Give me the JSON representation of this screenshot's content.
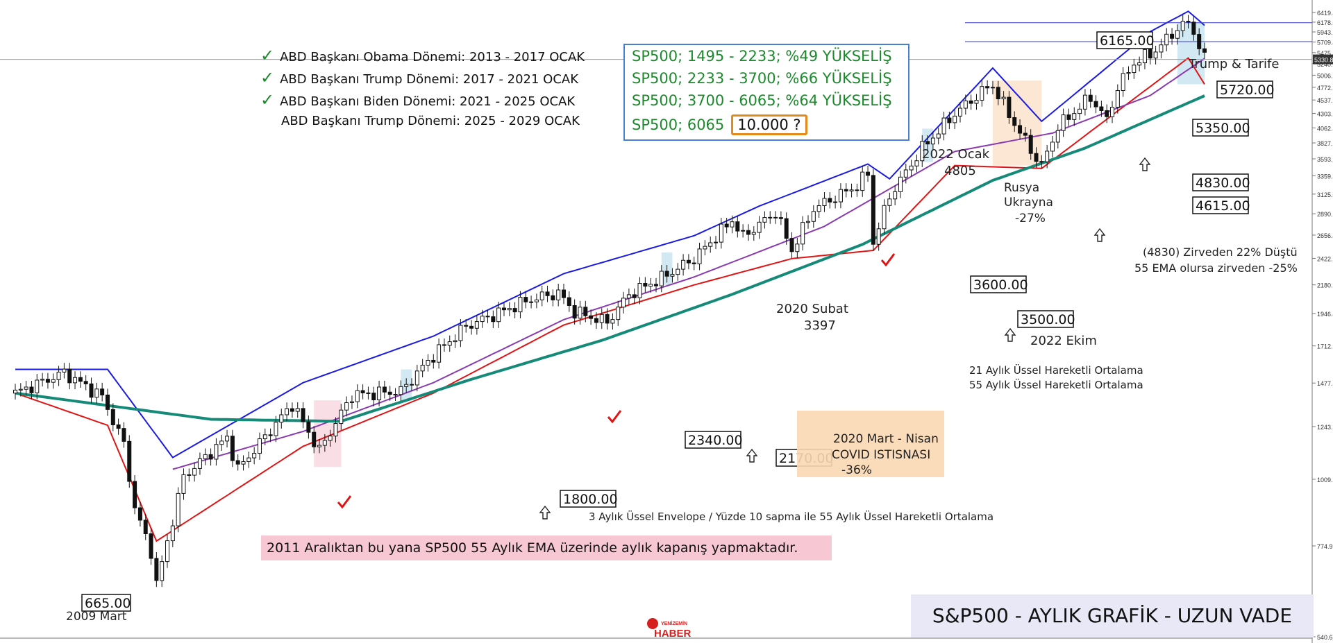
{
  "chart_data": {
    "type": "candlestick",
    "title": "S&P500 - AYLIK GRAFİK - UZUN VADE",
    "x_range": [
      "2007-01",
      "2025-04"
    ],
    "ylim": [
      540.6,
      6419.4
    ],
    "y_scale": "log",
    "y_ticks": [
      "6419.4",
      "6178.0",
      "5943.7",
      "5709.4",
      "5475.1",
      "5240.8",
      "5006.5",
      "4772.2",
      "4537.9",
      "4303.6",
      "4062.8",
      "3827.9",
      "3593.6",
      "3359.3",
      "3125.0",
      "2890.7",
      "2656.4",
      "2422.1",
      "2180.7",
      "1946.4",
      "1712.1",
      "1477.8",
      "1243.5",
      "1009.2",
      "774.9",
      "540.6"
    ],
    "last_price_tag": "5330.8",
    "price_path": [
      {
        "date": "2007-01",
        "close": 1420
      },
      {
        "date": "2007-10",
        "close": 1540
      },
      {
        "date": "2008-05",
        "close": 1400
      },
      {
        "date": "2008-09",
        "close": 1160
      },
      {
        "date": "2008-11",
        "close": 900
      },
      {
        "date": "2009-02",
        "close": 760
      },
      {
        "date": "2009-03",
        "close": 665
      },
      {
        "date": "2009-08",
        "close": 1020
      },
      {
        "date": "2010-04",
        "close": 1190
      },
      {
        "date": "2010-06",
        "close": 1050
      },
      {
        "date": "2011-04",
        "close": 1360
      },
      {
        "date": "2011-09",
        "close": 1130
      },
      {
        "date": "2012-03",
        "close": 1410
      },
      {
        "date": "2012-12",
        "close": 1430
      },
      {
        "date": "2013-06",
        "close": 1650
      },
      {
        "date": "2013-12",
        "close": 1850
      },
      {
        "date": "2014-12",
        "close": 2060
      },
      {
        "date": "2015-05",
        "close": 2110
      },
      {
        "date": "2015-08",
        "close": 1960
      },
      {
        "date": "2016-02",
        "close": 1880
      },
      {
        "date": "2016-06",
        "close": 2100
      },
      {
        "date": "2016-12",
        "close": 2240
      },
      {
        "date": "2017-06",
        "close": 2420
      },
      {
        "date": "2018-01",
        "close": 2820
      },
      {
        "date": "2018-03",
        "close": 2640
      },
      {
        "date": "2018-09",
        "close": 2910
      },
      {
        "date": "2018-12",
        "close": 2500
      },
      {
        "date": "2019-04",
        "close": 2950
      },
      {
        "date": "2019-12",
        "close": 3230
      },
      {
        "date": "2020-02",
        "close": 3397
      },
      {
        "date": "2020-03",
        "close": 2580
      },
      {
        "date": "2020-06",
        "close": 3100
      },
      {
        "date": "2020-12",
        "close": 3750
      },
      {
        "date": "2021-06",
        "close": 4300
      },
      {
        "date": "2021-12",
        "close": 4766
      },
      {
        "date": "2022-01",
        "close": 4805
      },
      {
        "date": "2022-05",
        "close": 4130
      },
      {
        "date": "2022-09",
        "close": 3600
      },
      {
        "date": "2022-10",
        "close": 3500
      },
      {
        "date": "2023-01",
        "close": 4080
      },
      {
        "date": "2023-07",
        "close": 4590
      },
      {
        "date": "2023-10",
        "close": 4190
      },
      {
        "date": "2023-12",
        "close": 4770
      },
      {
        "date": "2024-03",
        "close": 5250
      },
      {
        "date": "2024-07",
        "close": 5520
      },
      {
        "date": "2024-11",
        "close": 6030
      },
      {
        "date": "2025-01",
        "close": 6165
      },
      {
        "date": "2025-02",
        "close": 5950
      },
      {
        "date": "2025-03",
        "close": 5620
      },
      {
        "date": "2025-04",
        "close": 5330
      }
    ],
    "series": [
      {
        "name": "21  Aylık Üssel Hareketli Ortalama",
        "color": "#8a3ab0",
        "values": [
          {
            "date": "2009-06",
            "value": 1050
          },
          {
            "date": "2011-06",
            "value": 1220
          },
          {
            "date": "2013-06",
            "value": 1480
          },
          {
            "date": "2015-06",
            "value": 1900
          },
          {
            "date": "2017-06",
            "value": 2250
          },
          {
            "date": "2019-06",
            "value": 2750
          },
          {
            "date": "2021-06",
            "value": 3700
          },
          {
            "date": "2022-12",
            "value": 3980
          },
          {
            "date": "2024-06",
            "value": 4620
          },
          {
            "date": "2025-04",
            "value": 5350
          }
        ]
      },
      {
        "name": "55 Aylık Üssel Hareketli Ortalama",
        "color": "#168a78",
        "values": [
          {
            "date": "2007-01",
            "value": 1420
          },
          {
            "date": "2010-01",
            "value": 1280
          },
          {
            "date": "2012-01",
            "value": 1270
          },
          {
            "date": "2014-01",
            "value": 1500
          },
          {
            "date": "2016-01",
            "value": 1750
          },
          {
            "date": "2018-01",
            "value": 2100
          },
          {
            "date": "2020-01",
            "value": 2560
          },
          {
            "date": "2022-01",
            "value": 3300
          },
          {
            "date": "2023-06",
            "value": 3750
          },
          {
            "date": "2025-04",
            "value": 4615
          }
        ]
      }
    ],
    "envelope_upper": [
      {
        "date": "2007-01",
        "value": 1560
      },
      {
        "date": "2008-06",
        "value": 1560
      },
      {
        "date": "2009-06",
        "value": 1100
      },
      {
        "date": "2011-06",
        "value": 1480
      },
      {
        "date": "2013-06",
        "value": 1780
      },
      {
        "date": "2015-06",
        "value": 2280
      },
      {
        "date": "2017-06",
        "value": 2650
      },
      {
        "date": "2018-06",
        "value": 2980
      },
      {
        "date": "2020-02",
        "value": 3520
      },
      {
        "date": "2020-06",
        "value": 3320
      },
      {
        "date": "2022-01",
        "value": 5150
      },
      {
        "date": "2022-10",
        "value": 4170
      },
      {
        "date": "2024-06",
        "value": 5950
      },
      {
        "date": "2025-01",
        "value": 6450
      },
      {
        "date": "2025-04",
        "value": 6100
      }
    ],
    "envelope_lower": [
      {
        "date": "2007-01",
        "value": 1420
      },
      {
        "date": "2008-06",
        "value": 1250
      },
      {
        "date": "2009-03",
        "value": 790
      },
      {
        "date": "2011-06",
        "value": 1150
      },
      {
        "date": "2013-06",
        "value": 1420
      },
      {
        "date": "2015-06",
        "value": 1860
      },
      {
        "date": "2017-06",
        "value": 2180
      },
      {
        "date": "2018-12",
        "value": 2420
      },
      {
        "date": "2020-03",
        "value": 2500
      },
      {
        "date": "2021-06",
        "value": 3500
      },
      {
        "date": "2022-10",
        "value": 3460
      },
      {
        "date": "2024-03",
        "value": 4560
      },
      {
        "date": "2025-01",
        "value": 5360
      },
      {
        "date": "2025-04",
        "value": 4830
      }
    ],
    "price_boxes": [
      "665.00",
      "1800.00",
      "2340.00",
      "2170.00",
      "3600.00",
      "3500.00",
      "6165.00",
      "5720.00",
      "5350.00",
      "4830.00",
      "4615.00"
    ],
    "annotations": {
      "mar2009": "2009 Mart",
      "feb2020": "2020 Subat",
      "feb2020_val": "3397",
      "jan2022": "2022 Ocak",
      "jan2022_val": "4805",
      "russia1": "Rusya",
      "russia2": "Ukrayna",
      "russia_pct": "-27%",
      "oct2022": "2022 Ekim",
      "covid1": "2020 Mart - Nisan",
      "covid2": "COVID ISTISNASI",
      "covid_pct": "-36%",
      "trump_tariff": "Trump & Tarife",
      "drop_red": "(4830) Zirveden 22% Düştü",
      "drop_blue": "55 EMA olursa zirveden -25%",
      "envelope_note": "3 Aylık Üssel Envelope / Yüzde 10 sapma ile 55 Aylık Üssel Hareketli Ortalama"
    }
  },
  "presidents": [
    {
      "label": "ABD Başkanı Obama Dönemi: 2013 - 2017 OCAK",
      "checked": true
    },
    {
      "label": "ABD Başkanı Trump Dönemi: 2017 - 2021 OCAK",
      "checked": true
    },
    {
      "label": "ABD Başkanı Biden Dönemi: 2021 - 2025 OCAK",
      "checked": true
    },
    {
      "label": "ABD Başkanı Trump Dönemi: 2025 - 2029 OCAK",
      "checked": false
    }
  ],
  "performance": [
    "SP500; 1495 - 2233; %49 YÜKSELİŞ",
    "SP500; 2233 - 3700; %66 YÜKSELİŞ",
    "SP500; 3700 - 6065; %64 YÜKSELİŞ"
  ],
  "performance_last": {
    "prefix": "SP500; 6065",
    "target": "10.000 ?"
  },
  "note_2011": "2011 Aralıktan bu yana SP500 55 Aylık EMA üzerinde  aylık kapanış yapmaktadır.",
  "logo": {
    "line1": "YENİZEMİN",
    "line2": "HABER"
  },
  "colors": {
    "upper_envelope": "#1a1ae6",
    "lower_envelope": "#e01414",
    "ema21": "#8a3ab0",
    "ema55": "#168a78",
    "check": "#1c8a2c",
    "perf_text": "#1c8a2c",
    "perf_border": "#4a7fd0",
    "target_border": "#e58a1a",
    "note_bg": "#f7c8d3",
    "title_bg": "#e8e8f6"
  }
}
